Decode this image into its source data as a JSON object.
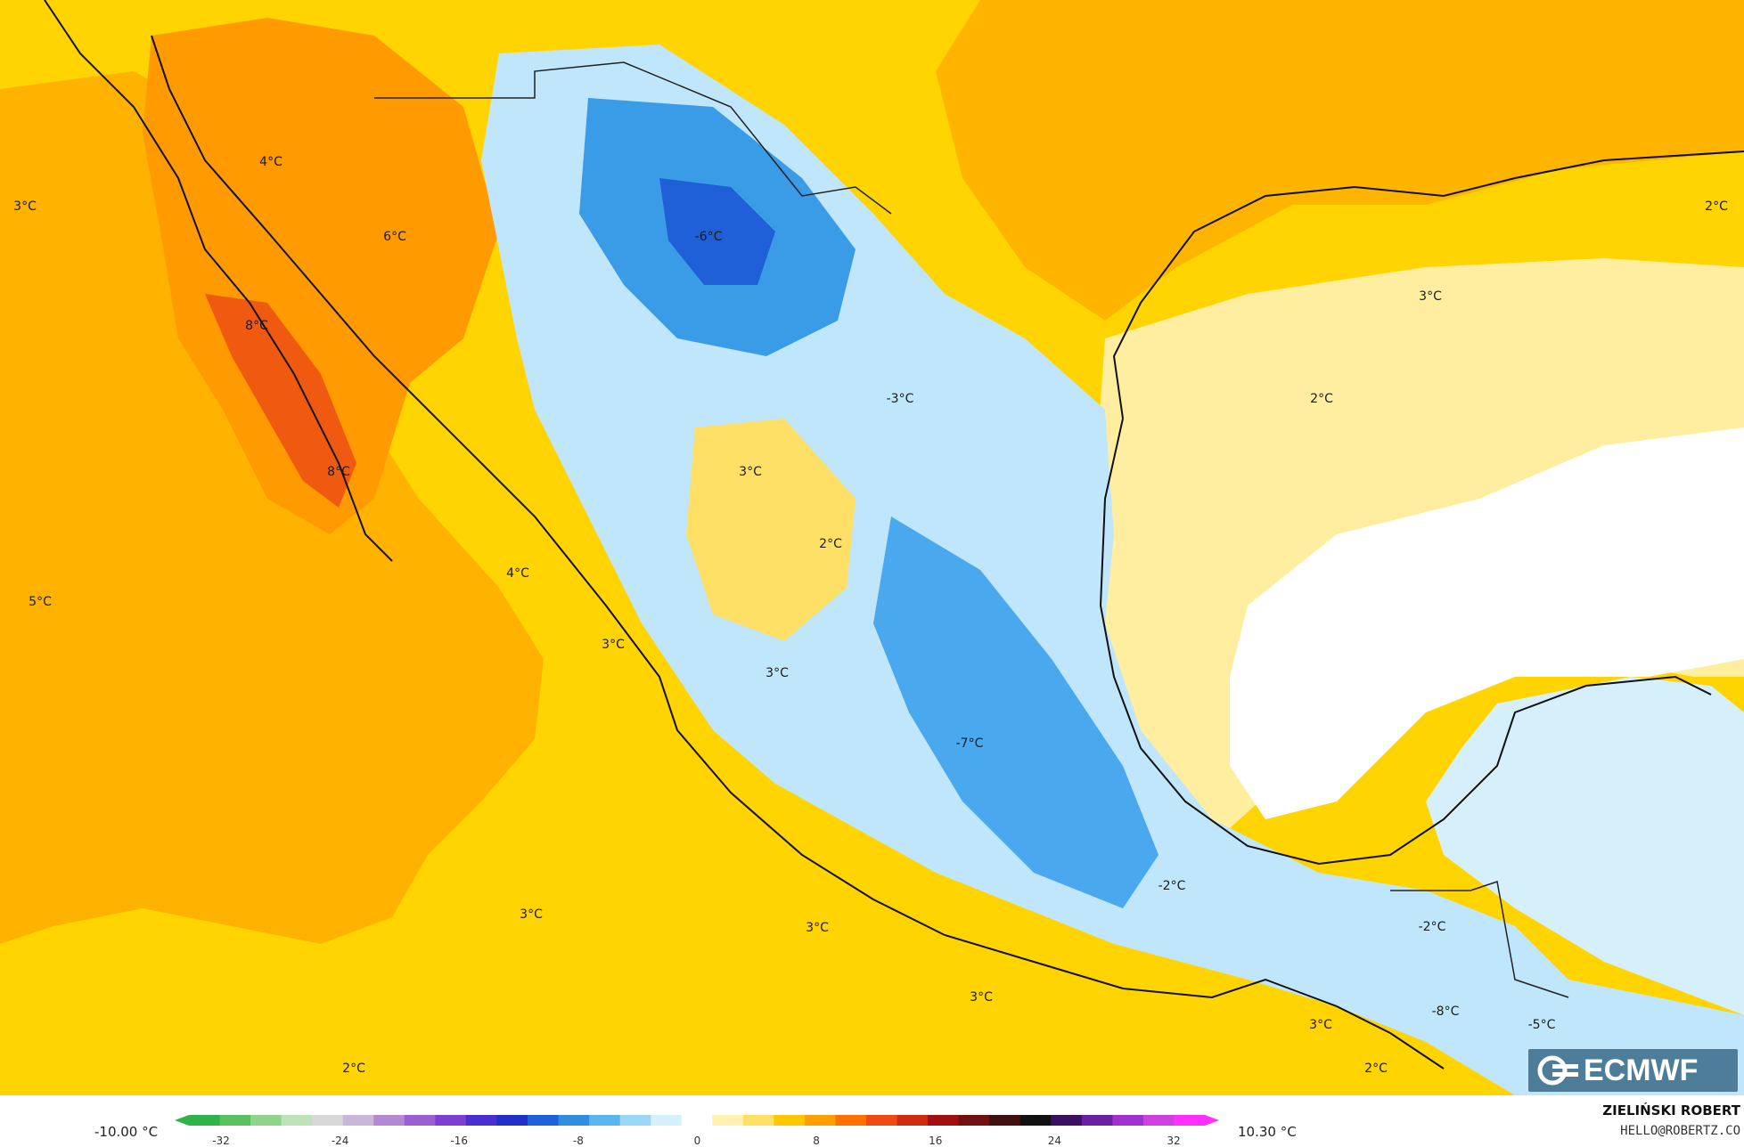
{
  "map": {
    "labels": [
      {
        "text": "3°C"
      },
      {
        "text": "4°C"
      },
      {
        "text": "6°C"
      },
      {
        "text": "-6°C"
      },
      {
        "text": "8°C"
      },
      {
        "text": "8°C"
      },
      {
        "text": "-3°C"
      },
      {
        "text": "3°C"
      },
      {
        "text": "2°C"
      },
      {
        "text": "4°C"
      },
      {
        "text": "5°C"
      },
      {
        "text": "3°C"
      },
      {
        "text": "3°C"
      },
      {
        "text": "-7°C"
      },
      {
        "text": "-2°C"
      },
      {
        "text": "-2°C"
      },
      {
        "text": "3°C"
      },
      {
        "text": "3°C"
      },
      {
        "text": "3°C"
      },
      {
        "text": "2°C"
      },
      {
        "text": "3°C"
      },
      {
        "text": "2°C"
      },
      {
        "text": "-8°C"
      },
      {
        "text": "-5°C"
      },
      {
        "text": "2°C"
      },
      {
        "text": "3°C"
      },
      {
        "text": "2°C"
      }
    ]
  },
  "legend": {
    "min_label": "-10.00 °C",
    "max_label": "10.30 °C",
    "ticks": [
      "-32",
      "-24",
      "-16",
      "-8",
      "0",
      "8",
      "16",
      "24",
      "32"
    ],
    "colors": [
      "#2db34a",
      "#58c25e",
      "#8fd48a",
      "#bfe3b9",
      "#d8d8d8",
      "#c9b6d9",
      "#b38ad1",
      "#9a5fd0",
      "#7c3fd1",
      "#4a2fd0",
      "#1f2fc8",
      "#1f5fd8",
      "#2f8ee0",
      "#5ab4ee",
      "#9ad6f5",
      "#d5effb",
      "#ffffff",
      "#fff2b3",
      "#ffe066",
      "#ffc700",
      "#ff9f00",
      "#ff7000",
      "#f04a10",
      "#d02a10",
      "#a01010",
      "#701010",
      "#401010",
      "#111111",
      "#3a1060",
      "#6a20a0",
      "#a030d0",
      "#d040e0",
      "#ff30ff"
    ]
  },
  "branding": {
    "logo_text": "ECMWF",
    "author": "ZIELIŃSKI ROBERT",
    "email": "HELLO@ROBERTZ.CO"
  }
}
